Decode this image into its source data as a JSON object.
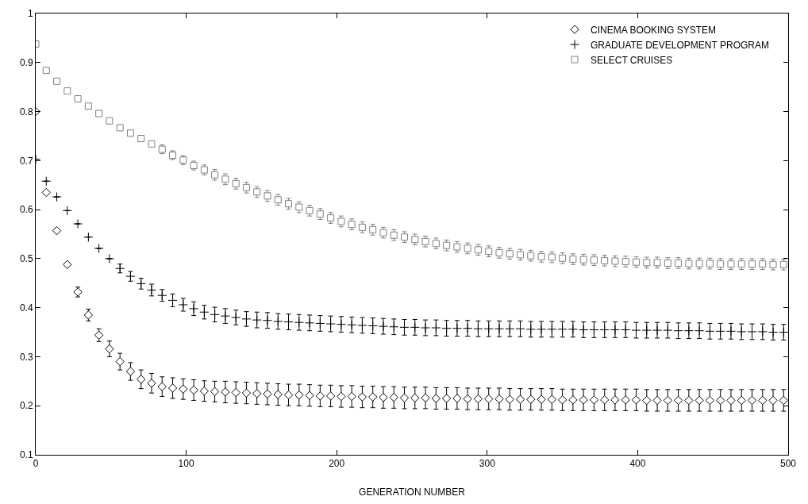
{
  "chart_data": {
    "type": "scatter",
    "xlabel": "GENERATION NUMBER",
    "x": [
      0,
      7,
      14,
      21,
      28,
      35,
      42,
      49,
      56,
      63,
      70,
      77,
      84,
      91,
      98,
      105,
      112,
      119,
      126,
      133,
      140,
      147,
      154,
      161,
      168,
      175,
      182,
      189,
      196,
      203,
      210,
      217,
      224,
      231,
      238,
      245,
      252,
      259,
      266,
      273,
      280,
      287,
      294,
      301,
      308,
      315,
      322,
      329,
      336,
      343,
      350,
      357,
      364,
      371,
      378,
      385,
      392,
      399,
      406,
      413,
      420,
      427,
      434,
      441,
      448,
      455,
      462,
      469,
      476,
      483,
      490,
      497
    ],
    "xlim": [
      0,
      500
    ],
    "xticks": [
      0,
      100,
      200,
      300,
      400,
      500
    ],
    "ylim": [
      0.1,
      1
    ],
    "yticks": [
      0.1,
      0.2,
      0.3,
      0.4,
      0.5,
      0.6,
      0.7,
      0.8,
      0.9,
      1
    ],
    "legend": "top right",
    "series": [
      {
        "name": "CINEMA BOOKING SYSTEM",
        "color": "#000000",
        "marker": "diamond",
        "values": [
          0.8,
          0.635,
          0.557,
          0.488,
          0.432,
          0.385,
          0.344,
          0.316,
          0.29,
          0.27,
          0.254,
          0.246,
          0.239,
          0.236,
          0.234,
          0.232,
          0.23,
          0.229,
          0.228,
          0.227,
          0.226,
          0.225,
          0.224,
          0.223,
          0.222,
          0.222,
          0.221,
          0.22,
          0.22,
          0.219,
          0.219,
          0.218,
          0.218,
          0.217,
          0.217,
          0.216,
          0.216,
          0.216,
          0.215,
          0.215,
          0.215,
          0.214,
          0.214,
          0.214,
          0.214,
          0.213,
          0.213,
          0.213,
          0.213,
          0.213,
          0.212,
          0.212,
          0.212,
          0.212,
          0.212,
          0.212,
          0.212,
          0.212,
          0.211,
          0.211,
          0.211,
          0.211,
          0.211,
          0.211,
          0.211,
          0.211,
          0.211,
          0.211,
          0.211,
          0.211,
          0.211,
          0.211
        ],
        "errors": [
          null,
          null,
          null,
          null,
          0.01,
          0.012,
          0.013,
          0.016,
          0.017,
          0.018,
          0.019,
          0.02,
          0.02,
          0.021,
          0.021,
          0.021,
          0.021,
          0.021,
          0.022,
          0.022,
          0.022,
          0.022,
          0.022,
          0.022,
          0.022,
          0.022,
          0.022,
          0.022,
          0.022,
          0.022,
          0.022,
          0.022,
          0.022,
          0.022,
          0.022,
          0.022,
          0.022,
          0.022,
          0.022,
          0.022,
          0.022,
          0.022,
          0.022,
          0.022,
          0.022,
          0.022,
          0.022,
          0.022,
          0.022,
          0.022,
          0.022,
          0.022,
          0.022,
          0.022,
          0.022,
          0.022,
          0.022,
          0.022,
          0.022,
          0.022,
          0.022,
          0.022,
          0.022,
          0.022,
          0.022,
          0.022,
          0.022,
          0.022,
          0.022,
          0.022,
          0.022,
          0.022
        ]
      },
      {
        "name": "GRADUATE DEVELOPMENT PROGRAM",
        "color": "#000000",
        "marker": "cross",
        "values": [
          0.703,
          0.658,
          0.626,
          0.598,
          0.571,
          0.544,
          0.521,
          0.5,
          0.48,
          0.464,
          0.449,
          0.436,
          0.425,
          0.415,
          0.406,
          0.398,
          0.391,
          0.386,
          0.383,
          0.38,
          0.377,
          0.375,
          0.374,
          0.372,
          0.371,
          0.37,
          0.369,
          0.368,
          0.367,
          0.366,
          0.365,
          0.364,
          0.363,
          0.362,
          0.361,
          0.36,
          0.36,
          0.359,
          0.359,
          0.358,
          0.358,
          0.358,
          0.357,
          0.357,
          0.357,
          0.357,
          0.357,
          0.356,
          0.356,
          0.356,
          0.356,
          0.356,
          0.355,
          0.355,
          0.355,
          0.355,
          0.355,
          0.354,
          0.354,
          0.354,
          0.354,
          0.353,
          0.353,
          0.353,
          0.352,
          0.352,
          0.352,
          0.351,
          0.351,
          0.351,
          0.35,
          0.35
        ],
        "errors": [
          null,
          null,
          null,
          null,
          null,
          null,
          null,
          null,
          0.009,
          0.01,
          0.011,
          0.012,
          0.012,
          0.013,
          0.013,
          0.014,
          0.014,
          0.015,
          0.015,
          0.015,
          0.015,
          0.016,
          0.016,
          0.016,
          0.016,
          0.016,
          0.016,
          0.016,
          0.016,
          0.016,
          0.016,
          0.016,
          0.016,
          0.016,
          0.016,
          0.016,
          0.016,
          0.016,
          0.016,
          0.016,
          0.016,
          0.016,
          0.016,
          0.016,
          0.016,
          0.016,
          0.016,
          0.016,
          0.016,
          0.016,
          0.016,
          0.016,
          0.016,
          0.016,
          0.016,
          0.016,
          0.016,
          0.016,
          0.016,
          0.016,
          0.016,
          0.016,
          0.016,
          0.016,
          0.016,
          0.016,
          0.016,
          0.016,
          0.016,
          0.016,
          0.016,
          0.016
        ]
      },
      {
        "name": "SELECT CRUISES",
        "color": "#808080",
        "marker": "square",
        "values": [
          0.938,
          0.884,
          0.862,
          0.842,
          0.826,
          0.811,
          0.796,
          0.781,
          0.767,
          0.756,
          0.745,
          0.734,
          0.723,
          0.711,
          0.701,
          0.69,
          0.681,
          0.671,
          0.662,
          0.653,
          0.645,
          0.636,
          0.628,
          0.62,
          0.612,
          0.605,
          0.598,
          0.591,
          0.583,
          0.576,
          0.57,
          0.564,
          0.559,
          0.553,
          0.548,
          0.544,
          0.539,
          0.535,
          0.531,
          0.527,
          0.524,
          0.521,
          0.518,
          0.515,
          0.512,
          0.51,
          0.508,
          0.506,
          0.504,
          0.503,
          0.501,
          0.499,
          0.498,
          0.497,
          0.496,
          0.495,
          0.494,
          0.493,
          0.492,
          0.492,
          0.491,
          0.491,
          0.49,
          0.49,
          0.49,
          0.489,
          0.489,
          0.489,
          0.489,
          0.489,
          0.488,
          0.488
        ],
        "errors": [
          null,
          null,
          null,
          null,
          null,
          null,
          null,
          null,
          null,
          null,
          null,
          null,
          0.009,
          0.009,
          0.009,
          0.009,
          0.01,
          0.011,
          0.011,
          0.011,
          0.011,
          0.011,
          0.011,
          0.011,
          0.011,
          0.011,
          0.011,
          0.011,
          0.011,
          0.011,
          0.011,
          0.011,
          0.011,
          0.011,
          0.011,
          0.011,
          0.011,
          0.011,
          0.011,
          0.011,
          0.011,
          0.011,
          0.011,
          0.011,
          0.011,
          0.011,
          0.011,
          0.011,
          0.011,
          0.011,
          0.011,
          0.011,
          0.011,
          0.011,
          0.011,
          0.011,
          0.011,
          0.011,
          0.011,
          0.011,
          0.011,
          0.011,
          0.011,
          0.011,
          0.011,
          0.011,
          0.011,
          0.011,
          0.011,
          0.011,
          0.011,
          0.011
        ]
      }
    ]
  }
}
